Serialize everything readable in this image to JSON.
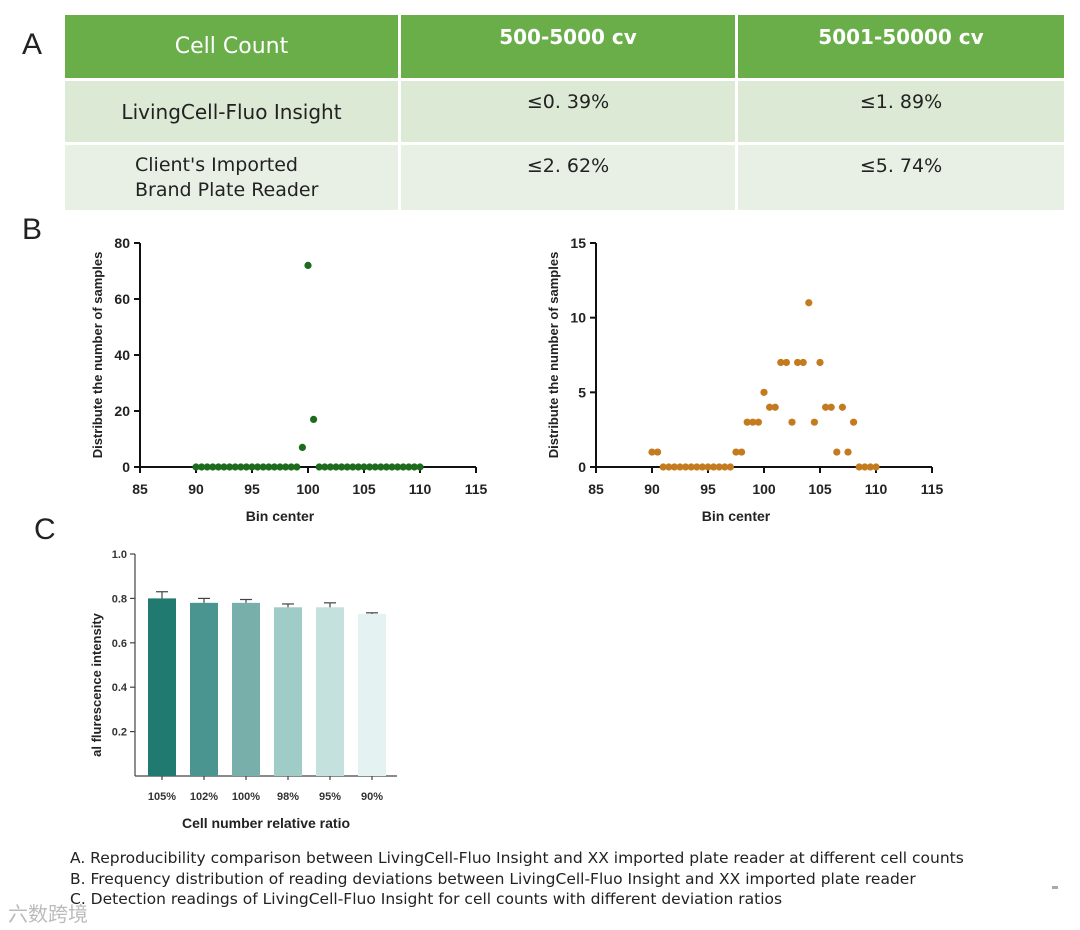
{
  "panels": {
    "a": "A",
    "b": "B",
    "c": "C"
  },
  "table": {
    "headers": [
      "Cell Count",
      "500-5000 cv",
      "5001-50000 cv"
    ],
    "rows": [
      {
        "label_lines": [
          "LivingCell-Fluo Insight"
        ],
        "values": [
          "≤0. 39%",
          "≤1. 89%"
        ]
      },
      {
        "label_lines": [
          "Client's Imported",
          "Brand Plate Reader"
        ],
        "values": [
          "≤2. 62%",
          "≤5. 74%"
        ]
      }
    ],
    "colors": {
      "header": "#6aae4a",
      "row1": "#dbe9d5",
      "row2": "#e8f0e6"
    }
  },
  "chart_data": [
    {
      "type": "scatter",
      "title": "",
      "xlabel": "Bin center",
      "ylabel": "Distribute the number of samples",
      "xlim": [
        85,
        115
      ],
      "ylim": [
        0,
        80
      ],
      "xticks": [
        85,
        90,
        95,
        100,
        105,
        110,
        115
      ],
      "yticks": [
        0,
        20,
        40,
        60,
        80
      ],
      "color": "#1d6b1d",
      "x": [
        90,
        90.5,
        91,
        91.5,
        92,
        92.5,
        93,
        93.5,
        94,
        94.5,
        95,
        95.5,
        96,
        96.5,
        97,
        97.5,
        98,
        98.5,
        99,
        99.5,
        100,
        100.5,
        101,
        101.5,
        102,
        102.5,
        103,
        103.5,
        104,
        104.5,
        105,
        105.5,
        106,
        106.5,
        107,
        107.5,
        108,
        108.5,
        109,
        109.5,
        110
      ],
      "y": [
        0,
        0,
        0,
        0,
        0,
        0,
        0,
        0,
        0,
        0,
        0,
        0,
        0,
        0,
        0,
        0,
        0,
        0,
        0,
        7,
        72,
        17,
        0,
        0,
        0,
        0,
        0,
        0,
        0,
        0,
        0,
        0,
        0,
        0,
        0,
        0,
        0,
        0,
        0,
        0,
        0
      ]
    },
    {
      "type": "scatter",
      "title": "",
      "xlabel": "Bin center",
      "ylabel": "Distribute the number of samples",
      "xlim": [
        85,
        115
      ],
      "ylim": [
        0,
        15
      ],
      "xticks": [
        85,
        90,
        95,
        100,
        105,
        110,
        115
      ],
      "yticks": [
        0,
        5,
        10,
        15
      ],
      "color": "#c47a1e",
      "x": [
        90,
        90.5,
        91,
        91.5,
        92,
        92.5,
        93,
        93.5,
        94,
        94.5,
        95,
        95.5,
        96,
        96.5,
        97,
        97.5,
        98,
        98.5,
        99,
        99.5,
        100,
        100.5,
        101,
        101.5,
        102,
        102.5,
        103,
        103.5,
        104,
        104.5,
        105,
        105.5,
        106,
        106.5,
        107,
        107.5,
        108,
        108.5,
        109,
        109.5,
        110
      ],
      "y": [
        1,
        1,
        0,
        0,
        0,
        0,
        0,
        0,
        0,
        0,
        0,
        0,
        0,
        0,
        0,
        1,
        1,
        3,
        3,
        3,
        5,
        4,
        4,
        7,
        7,
        3,
        7,
        7,
        11,
        3,
        7,
        4,
        4,
        1,
        4,
        1,
        3,
        0,
        0,
        0,
        0
      ]
    },
    {
      "type": "bar",
      "title": "",
      "xlabel": "Cell number relative ratio",
      "ylabel": "al flurescence intensity",
      "ylim": [
        0,
        1.0
      ],
      "yticks": [
        0.2,
        0.4,
        0.6,
        0.8,
        1.0
      ],
      "ytick_labels": [
        "0.2",
        "0.4",
        "0.6",
        "0.8",
        "1.0"
      ],
      "categories": [
        "105%",
        "102%",
        "100%",
        "98%",
        "95%",
        "90%"
      ],
      "values": [
        0.8,
        0.78,
        0.78,
        0.76,
        0.76,
        0.73
      ],
      "errors": [
        0.03,
        0.02,
        0.015,
        0.015,
        0.02,
        0.005
      ],
      "colors": [
        "#217a70",
        "#4a9590",
        "#78afaa",
        "#a0ccc7",
        "#c4e1de",
        "#e4f3f2"
      ]
    }
  ],
  "caption": [
    "A. Reproducibility comparison between LivingCell-Fluo Insight and XX imported plate reader at different cell counts",
    "B. Frequency distribution of reading deviations between LivingCell-Fluo Insight and XX imported plate reader",
    "C. Detection readings of LivingCell-Fluo Insight for cell counts with different deviation ratios"
  ],
  "watermark": "六数跨境"
}
